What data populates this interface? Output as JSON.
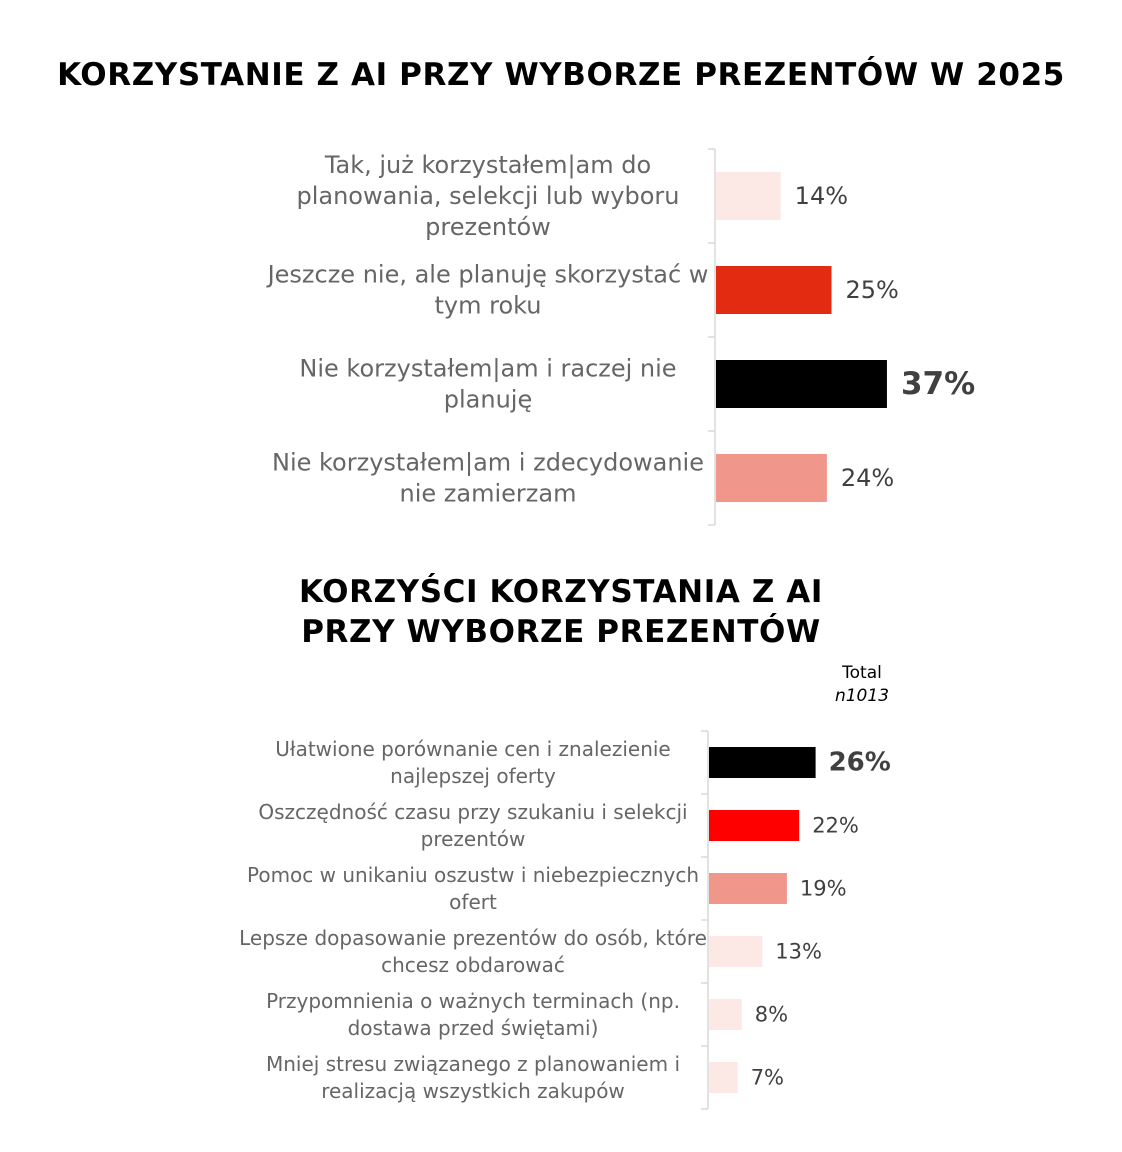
{
  "chart_data": [
    {
      "type": "bar",
      "orientation": "horizontal",
      "title": "KORZYSTANIE Z AI PRZY WYBORZE PREZENTÓW W 2025",
      "categories": [
        "Tak, już korzystałem|am do planowania, selekcji lub wyboru prezentów",
        "Jeszcze nie, ale planuję skorzystać w tym roku",
        "Nie korzystałem|am i raczej nie planuję",
        "Nie korzystałem|am i zdecydowanie nie zamierzam"
      ],
      "label_lines": [
        [
          "Tak, już korzystałem|am do",
          "planowania, selekcji lub wyboru",
          "prezentów"
        ],
        [
          "Jeszcze nie, ale planuję skorzystać w",
          "tym roku"
        ],
        [
          "Nie korzystałem|am i raczej nie",
          "planuję"
        ],
        [
          "Nie korzystałem|am i zdecydowanie",
          "nie zamierzam"
        ]
      ],
      "values": [
        14,
        25,
        37,
        24
      ],
      "value_labels": [
        "14%",
        "25%",
        "37%",
        "24%"
      ],
      "bar_colors": [
        "#fce9e6",
        "#e32b12",
        "#000000",
        "#f0968a"
      ],
      "highlight_index": 2,
      "grid": false,
      "legend": "none"
    },
    {
      "type": "bar",
      "orientation": "horizontal",
      "title": "KORZYŚCI KORZYSTANIA Z AI PRZY WYBORZE PREZENTÓW",
      "title_lines": [
        "KORZYŚCI KORZYSTANIA Z AI",
        "PRZY WYBORZE PREZENTÓW"
      ],
      "column_header": "Total",
      "sample_size": "n1013",
      "categories": [
        "Ułatwione porównanie cen i znalezienie najlepszej oferty",
        "Oszczędność czasu przy szukaniu i selekcji prezentów",
        "Pomoc w unikaniu oszustw i niebezpiecznych ofert",
        "Lepsze dopasowanie prezentów do osób, które chcesz obdarować",
        "Przypomnienia o ważnych terminach (np. dostawa przed świętami)",
        "Mniej stresu związanego z planowaniem i realizacją wszystkich zakupów"
      ],
      "label_lines": [
        [
          "Ułatwione porównanie cen i znalezienie",
          "najlepszej oferty"
        ],
        [
          "Oszczędność czasu przy szukaniu i selekcji",
          "prezentów"
        ],
        [
          "Pomoc w unikaniu oszustw i niebezpiecznych",
          "ofert"
        ],
        [
          "Lepsze dopasowanie prezentów do osób, które",
          "chcesz obdarować"
        ],
        [
          "Przypomnienia o ważnych terminach (np.",
          "dostawa przed świętami)"
        ],
        [
          "Mniej stresu związanego z planowaniem i",
          "realizacją wszystkich zakupów"
        ]
      ],
      "values": [
        26,
        22,
        19,
        13,
        8,
        7
      ],
      "value_labels": [
        "26%",
        "22%",
        "19%",
        "13%",
        "8%",
        "7%"
      ],
      "bar_colors": [
        "#000000",
        "#ff0000",
        "#f0968a",
        "#fce9e6",
        "#fce9e6",
        "#fce9e6"
      ],
      "highlight_index": 0,
      "grid": false,
      "legend": "none"
    }
  ]
}
